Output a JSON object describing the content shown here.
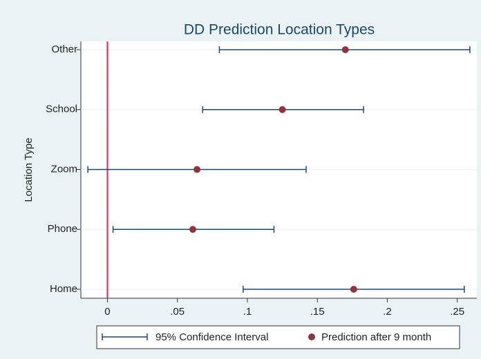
{
  "chart_data": {
    "type": "dot_ci",
    "title": "DD Prediction Location Types",
    "y_label": "Location Type",
    "categories": [
      "Other",
      "School",
      "Zoom",
      "Phone",
      "Home"
    ],
    "series": [
      {
        "name": "95% Confidence Interval",
        "color": "#1a476f",
        "low": [
          0.08,
          0.068,
          -0.014,
          0.004,
          0.097
        ],
        "high": [
          0.259,
          0.183,
          0.142,
          0.119,
          0.255
        ]
      },
      {
        "name": "Prediction after 9 month",
        "color": "#90353b",
        "values": [
          0.17,
          0.125,
          0.064,
          0.061,
          0.176
        ]
      }
    ],
    "xlim": [
      -0.019,
      0.264
    ],
    "xticks": [
      0,
      {
        "value": 0.05,
        "label": ".05"
      },
      {
        "value": 0.1,
        "label": ".1"
      },
      {
        "value": 0.15,
        "label": ".15"
      },
      {
        "value": 0.2,
        "label": ".2"
      },
      {
        "value": 0.25,
        "label": ".25"
      }
    ],
    "reference_line": {
      "value": 0,
      "color": "#d62a4b"
    },
    "grid": true,
    "legend": "bottom"
  }
}
